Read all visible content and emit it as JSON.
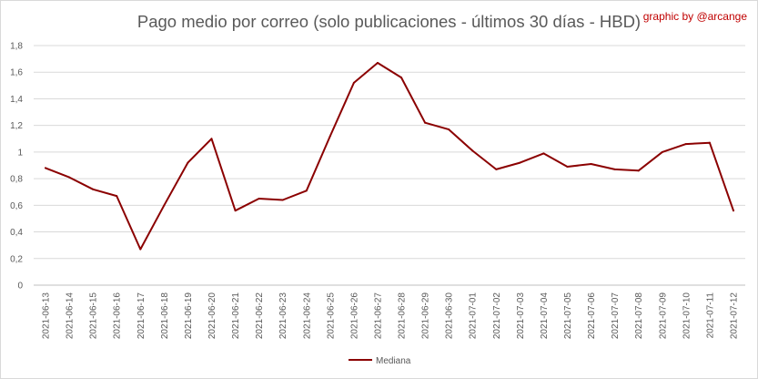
{
  "credit": "graphic by @arcange",
  "chart_data": {
    "type": "line",
    "title": "Pago medio por correo (solo publicaciones - últimos 30 días - HBD)",
    "xlabel": "",
    "ylabel": "",
    "ylim": [
      0,
      1.8
    ],
    "yticks": [
      "0",
      "0,2",
      "0,4",
      "0,6",
      "0,8",
      "1",
      "1,2",
      "1,4",
      "1,6",
      "1,8"
    ],
    "grid": true,
    "legend_position": "bottom",
    "categories": [
      "2021-06-13",
      "2021-06-14",
      "2021-06-15",
      "2021-06-16",
      "2021-06-17",
      "2021-06-18",
      "2021-06-19",
      "2021-06-20",
      "2021-06-21",
      "2021-06-22",
      "2021-06-23",
      "2021-06-24",
      "2021-06-25",
      "2021-06-26",
      "2021-06-27",
      "2021-06-28",
      "2021-06-29",
      "2021-06-30",
      "2021-07-01",
      "2021-07-02",
      "2021-07-03",
      "2021-07-04",
      "2021-07-05",
      "2021-07-06",
      "2021-07-07",
      "2021-07-08",
      "2021-07-09",
      "2021-07-10",
      "2021-07-11",
      "2021-07-12"
    ],
    "series": [
      {
        "name": "Mediana",
        "color": "#8b0000",
        "values": [
          0.88,
          0.81,
          0.72,
          0.67,
          0.27,
          0.6,
          0.92,
          1.1,
          0.56,
          0.65,
          0.64,
          0.71,
          1.12,
          1.52,
          1.67,
          1.56,
          1.22,
          1.17,
          1.01,
          0.87,
          0.92,
          0.99,
          0.89,
          0.91,
          0.87,
          0.86,
          1.0,
          1.06,
          1.07,
          0.56
        ]
      }
    ]
  }
}
